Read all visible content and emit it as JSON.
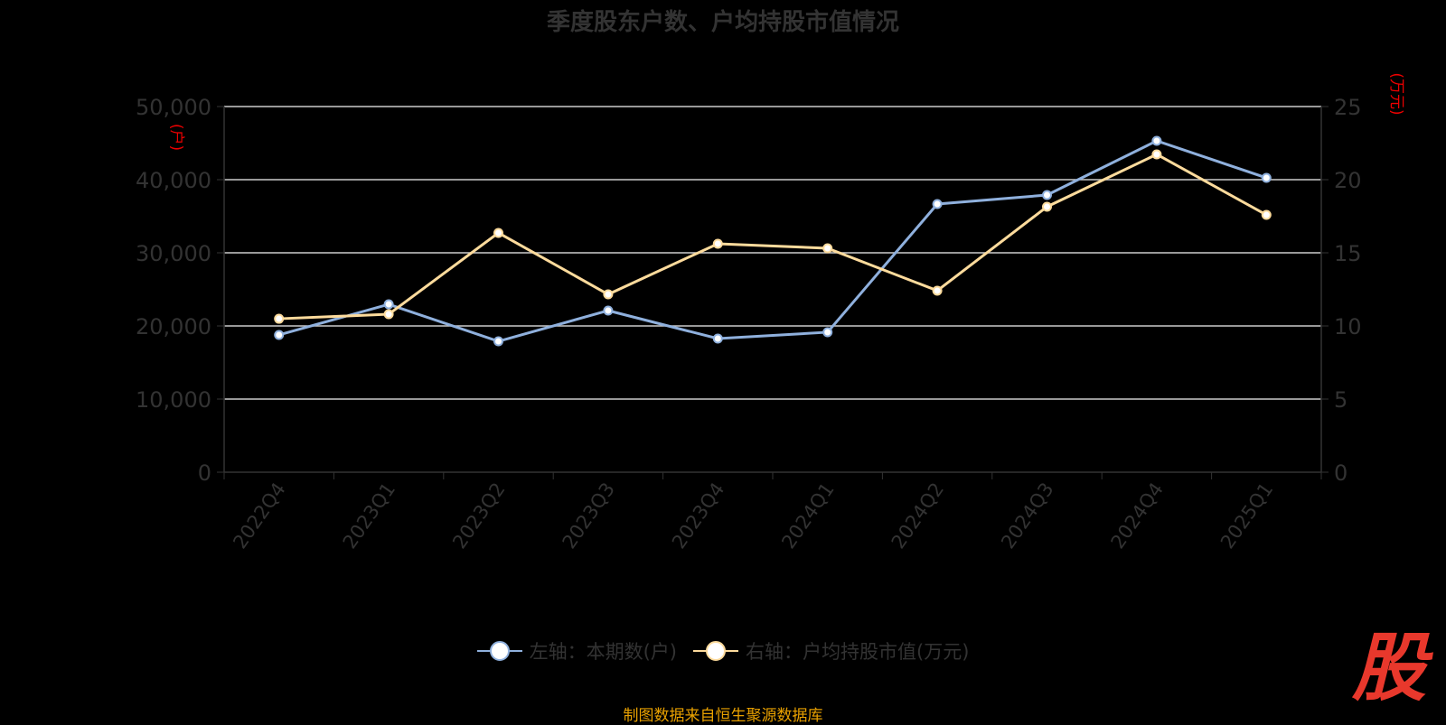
{
  "chart_data": {
    "type": "line",
    "title": "季度股东户数、户均持股市值情况",
    "categories": [
      "2022Q4",
      "2023Q1",
      "2023Q2",
      "2023Q3",
      "2023Q4",
      "2024Q1",
      "2024Q2",
      "2024Q3",
      "2024Q4",
      "2025Q1"
    ],
    "left_axis": {
      "unit_label": "(户)",
      "range": [
        0,
        50000
      ],
      "ticks": [
        "0",
        "10,000",
        "20,000",
        "30,000",
        "40,000",
        "50,000"
      ]
    },
    "right_axis": {
      "unit_label": "(万元)",
      "range": [
        0,
        25
      ],
      "ticks": [
        "0",
        "5",
        "10",
        "15",
        "20",
        "25"
      ]
    },
    "grid": true,
    "legend_position": "bottom",
    "series": [
      {
        "name": "左轴：本期数(户)",
        "axis": "left",
        "color": "#8fb0dd",
        "values": [
          18770,
          22960,
          17900,
          22100,
          18270,
          19140,
          36670,
          37900,
          45310,
          40250
        ]
      },
      {
        "name": "右轴：户均持股市值(万元)",
        "axis": "right",
        "color": "#fddb9c",
        "values": [
          10.49,
          10.8,
          16.36,
          12.16,
          15.62,
          15.31,
          12.41,
          18.15,
          21.73,
          17.59
        ]
      }
    ]
  },
  "footer": "制图数据来自恒生聚源数据库",
  "logo_text": "股"
}
